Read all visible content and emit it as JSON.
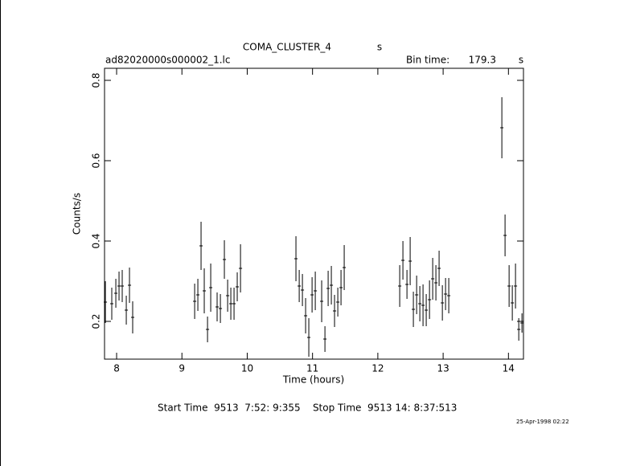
{
  "chart_data": {
    "type": "errorbar",
    "title": "COMA_CLUSTER_4",
    "title_unit": "s",
    "file": "ad82020000s000002_1.lc",
    "bin_time_label": "Bin time:",
    "bin_time": 179.3,
    "bin_time_unit": "s",
    "x_label": "Time (hours)",
    "y_label": "Counts/s",
    "start_stop": "Start Time  9513  7:52: 9:355    Stop Time  9513 14: 8:37:513",
    "date": "25-Apr-1998 02:22",
    "xlim": [
      7.815,
      14.23
    ],
    "ylim": [
      0.106,
      0.83
    ],
    "xticks": [
      8,
      9,
      10,
      11,
      12,
      13,
      14
    ],
    "yticks": [
      0.2,
      0.4,
      0.6,
      0.8
    ],
    "x": [
      7.828,
      7.926,
      7.988,
      8.037,
      8.086,
      8.148,
      8.197,
      8.246,
      9.195,
      9.244,
      9.293,
      9.342,
      9.392,
      9.441,
      9.539,
      9.589,
      9.65,
      9.7,
      9.749,
      9.798,
      9.847,
      9.897,
      10.746,
      10.796,
      10.845,
      10.894,
      10.943,
      10.993,
      11.042,
      11.14,
      11.19,
      11.239,
      11.288,
      11.337,
      11.387,
      11.436,
      11.485,
      12.335,
      12.384,
      12.446,
      12.495,
      12.544,
      12.594,
      12.643,
      12.692,
      12.741,
      12.791,
      12.84,
      12.889,
      12.938,
      12.988,
      13.037,
      13.086,
      13.899,
      13.948,
      14.01,
      14.059,
      14.108,
      14.158,
      14.207
    ],
    "values": [
      0.248,
      0.244,
      0.27,
      0.288,
      0.288,
      0.228,
      0.29,
      0.21,
      0.25,
      0.266,
      0.388,
      0.276,
      0.18,
      0.284,
      0.236,
      0.232,
      0.354,
      0.264,
      0.244,
      0.244,
      0.286,
      0.332,
      0.356,
      0.288,
      0.278,
      0.214,
      0.16,
      0.266,
      0.276,
      0.25,
      0.156,
      0.282,
      0.29,
      0.226,
      0.248,
      0.284,
      0.334,
      0.288,
      0.352,
      0.292,
      0.35,
      0.23,
      0.266,
      0.244,
      0.24,
      0.228,
      0.254,
      0.306,
      0.296,
      0.332,
      0.246,
      0.268,
      0.264,
      0.682,
      0.414,
      0.288,
      0.246,
      0.288,
      0.18,
      0.196
    ],
    "errors": [
      0.052,
      0.04,
      0.036,
      0.036,
      0.04,
      0.036,
      0.044,
      0.04,
      0.044,
      0.04,
      0.06,
      0.056,
      0.032,
      0.06,
      0.036,
      0.036,
      0.048,
      0.04,
      0.04,
      0.04,
      0.036,
      0.06,
      0.056,
      0.04,
      0.04,
      0.044,
      0.048,
      0.044,
      0.048,
      0.052,
      0.032,
      0.044,
      0.048,
      0.04,
      0.036,
      0.044,
      0.056,
      0.052,
      0.048,
      0.036,
      0.06,
      0.044,
      0.048,
      0.044,
      0.052,
      0.04,
      0.048,
      0.052,
      0.044,
      0.044,
      0.044,
      0.04,
      0.044,
      0.076,
      0.052,
      0.052,
      0.044,
      0.056,
      0.028,
      0.024
    ]
  }
}
